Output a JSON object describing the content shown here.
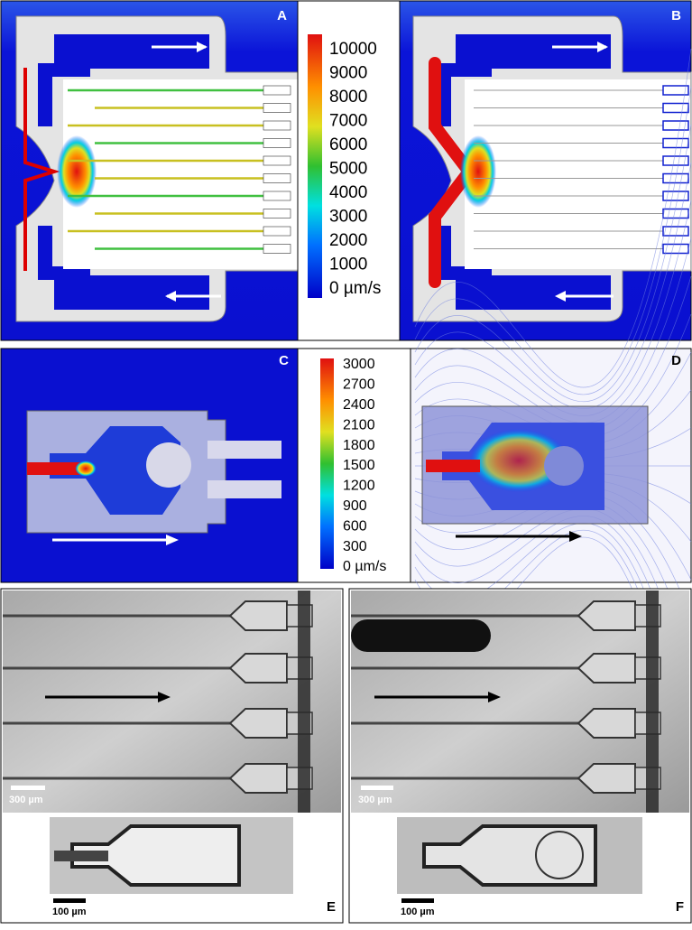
{
  "panels": [
    {
      "label": "A"
    },
    {
      "label": "B"
    },
    {
      "label": "C"
    },
    {
      "label": "D"
    },
    {
      "label": "E"
    },
    {
      "label": "F"
    }
  ],
  "colorbars": [
    {
      "ticks": [
        "10000",
        "9000",
        "8000",
        "7000",
        "6000",
        "5000",
        "4000",
        "3000",
        "2000",
        "1000",
        "0 µm/s"
      ]
    },
    {
      "ticks": [
        "3000",
        "2700",
        "2400",
        "2100",
        "1800",
        "1500",
        "1200",
        "900",
        "600",
        "300",
        "0 µm/s"
      ]
    }
  ],
  "scale_bars": [
    {
      "label": "300 µm"
    },
    {
      "label": "100 µm"
    },
    {
      "label": "300 µm"
    },
    {
      "label": "100 µm"
    }
  ]
}
